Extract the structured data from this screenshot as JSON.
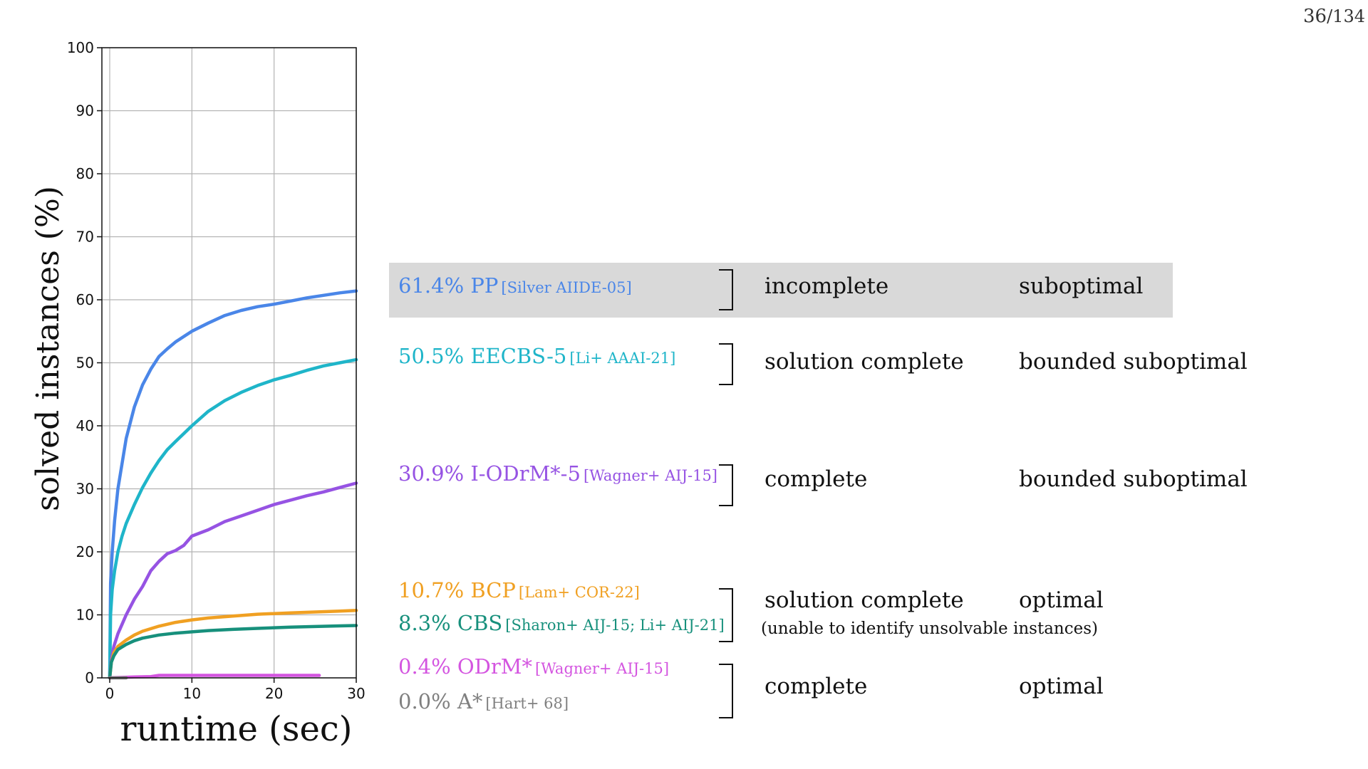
{
  "page": {
    "current": "36",
    "total": "/134"
  },
  "chart_data": {
    "type": "line",
    "xlabel": "runtime (sec)",
    "ylabel": "solved instances (%)",
    "xlim": [
      0,
      30
    ],
    "ylim": [
      0,
      100
    ],
    "xticks": [
      0,
      10,
      20,
      30
    ],
    "yticks": [
      0,
      10,
      20,
      30,
      40,
      50,
      60,
      70,
      80,
      90,
      100
    ],
    "grid": true,
    "series": [
      {
        "name": "PP",
        "color": "#4a86e8",
        "x": [
          0,
          0.1,
          0.3,
          0.6,
          1,
          1.5,
          2,
          3,
          4,
          5,
          6,
          7,
          8,
          10,
          12,
          14,
          16,
          18,
          20,
          22,
          24,
          26,
          28,
          30
        ],
        "y": [
          0,
          15,
          20,
          25,
          30,
          34,
          38,
          43,
          46.5,
          49,
          51,
          52.2,
          53.3,
          55,
          56.3,
          57.5,
          58.3,
          58.9,
          59.3,
          59.8,
          60.3,
          60.7,
          61.1,
          61.4
        ]
      },
      {
        "name": "EECBS-5",
        "color": "#1fb5c9",
        "x": [
          0,
          0.1,
          0.3,
          0.6,
          1,
          1.5,
          2,
          3,
          4,
          5,
          6,
          7,
          8,
          10,
          12,
          14,
          16,
          18,
          20,
          22,
          24,
          26,
          28,
          30
        ],
        "y": [
          0,
          10,
          14,
          17,
          20,
          22.5,
          24.5,
          27.5,
          30.2,
          32.5,
          34.5,
          36.2,
          37.5,
          40,
          42.3,
          44,
          45.3,
          46.4,
          47.3,
          48,
          48.8,
          49.5,
          50,
          50.5
        ]
      },
      {
        "name": "I-ODrM*-5",
        "color": "#9653e3",
        "x": [
          0,
          0.2,
          0.5,
          1,
          1.5,
          2,
          3,
          4,
          5,
          6,
          7,
          8,
          9,
          10,
          12,
          14,
          16,
          18,
          20,
          22,
          24,
          26,
          28,
          30
        ],
        "y": [
          0,
          3,
          5,
          7,
          8.5,
          10,
          12.5,
          14.5,
          17,
          18.5,
          19.7,
          20.2,
          21,
          22.5,
          23.5,
          24.8,
          25.7,
          26.6,
          27.5,
          28.2,
          28.9,
          29.5,
          30.2,
          30.9
        ]
      },
      {
        "name": "BCP",
        "color": "#f0a022",
        "x": [
          0,
          0.2,
          0.5,
          1,
          2,
          3,
          4,
          6,
          8,
          10,
          12,
          15,
          18,
          20,
          22,
          25,
          28,
          30
        ],
        "y": [
          0,
          2.5,
          4,
          5,
          6,
          6.8,
          7.4,
          8.2,
          8.8,
          9.2,
          9.5,
          9.8,
          10.1,
          10.2,
          10.3,
          10.45,
          10.6,
          10.7
        ]
      },
      {
        "name": "CBS",
        "color": "#17907c",
        "x": [
          0,
          0.2,
          0.5,
          1,
          2,
          3,
          4,
          6,
          8,
          10,
          12,
          15,
          18,
          20,
          22,
          25,
          28,
          30
        ],
        "y": [
          0,
          2.5,
          3.5,
          4.5,
          5.3,
          5.9,
          6.3,
          6.8,
          7.1,
          7.3,
          7.5,
          7.7,
          7.85,
          7.95,
          8.05,
          8.15,
          8.25,
          8.3
        ]
      },
      {
        "name": "ODrM*",
        "color": "#d455e0",
        "x": [
          0,
          3,
          5,
          6,
          10,
          15,
          20,
          25.5
        ],
        "y": [
          0,
          0.15,
          0.2,
          0.4,
          0.4,
          0.4,
          0.4,
          0.4
        ]
      },
      {
        "name": "A*",
        "color": "#808080",
        "x": [
          0,
          2
        ],
        "y": [
          0,
          0
        ]
      }
    ]
  },
  "rows": [
    {
      "main": "61.4% PP",
      "cite": "[Silver AIIDE-05]",
      "color": "#4a86e8"
    },
    {
      "main": "50.5% EECBS-5",
      "cite": "[Li+ AAAI-21]",
      "color": "#1fb5c9"
    },
    {
      "main": "30.9% I-ODrM*-5",
      "cite": "[Wagner+ AIJ-15]",
      "color": "#9653e3"
    },
    {
      "main": "10.7% BCP",
      "cite": "[Lam+ COR-22]",
      "color": "#f0a022"
    },
    {
      "main": "8.3% CBS",
      "cite": "[Sharon+ AIJ-15; Li+ AIJ-21]",
      "color": "#17907c"
    },
    {
      "main": "0.4% ODrM*",
      "cite": "[Wagner+ AIJ-15]",
      "color": "#d455e0"
    },
    {
      "main": "0.0% A*",
      "cite": "[Hart+ 68]",
      "color": "#808080"
    }
  ],
  "groups": [
    {
      "completeness": "incomplete",
      "optimality": "suboptimal"
    },
    {
      "completeness": "solution complete",
      "optimality": "bounded suboptimal"
    },
    {
      "completeness": "complete",
      "optimality": "bounded suboptimal"
    },
    {
      "completeness": "solution complete",
      "optimality": "optimal",
      "note": "(unable to identify unsolvable instances)"
    },
    {
      "completeness": "complete",
      "optimality": "optimal"
    }
  ]
}
